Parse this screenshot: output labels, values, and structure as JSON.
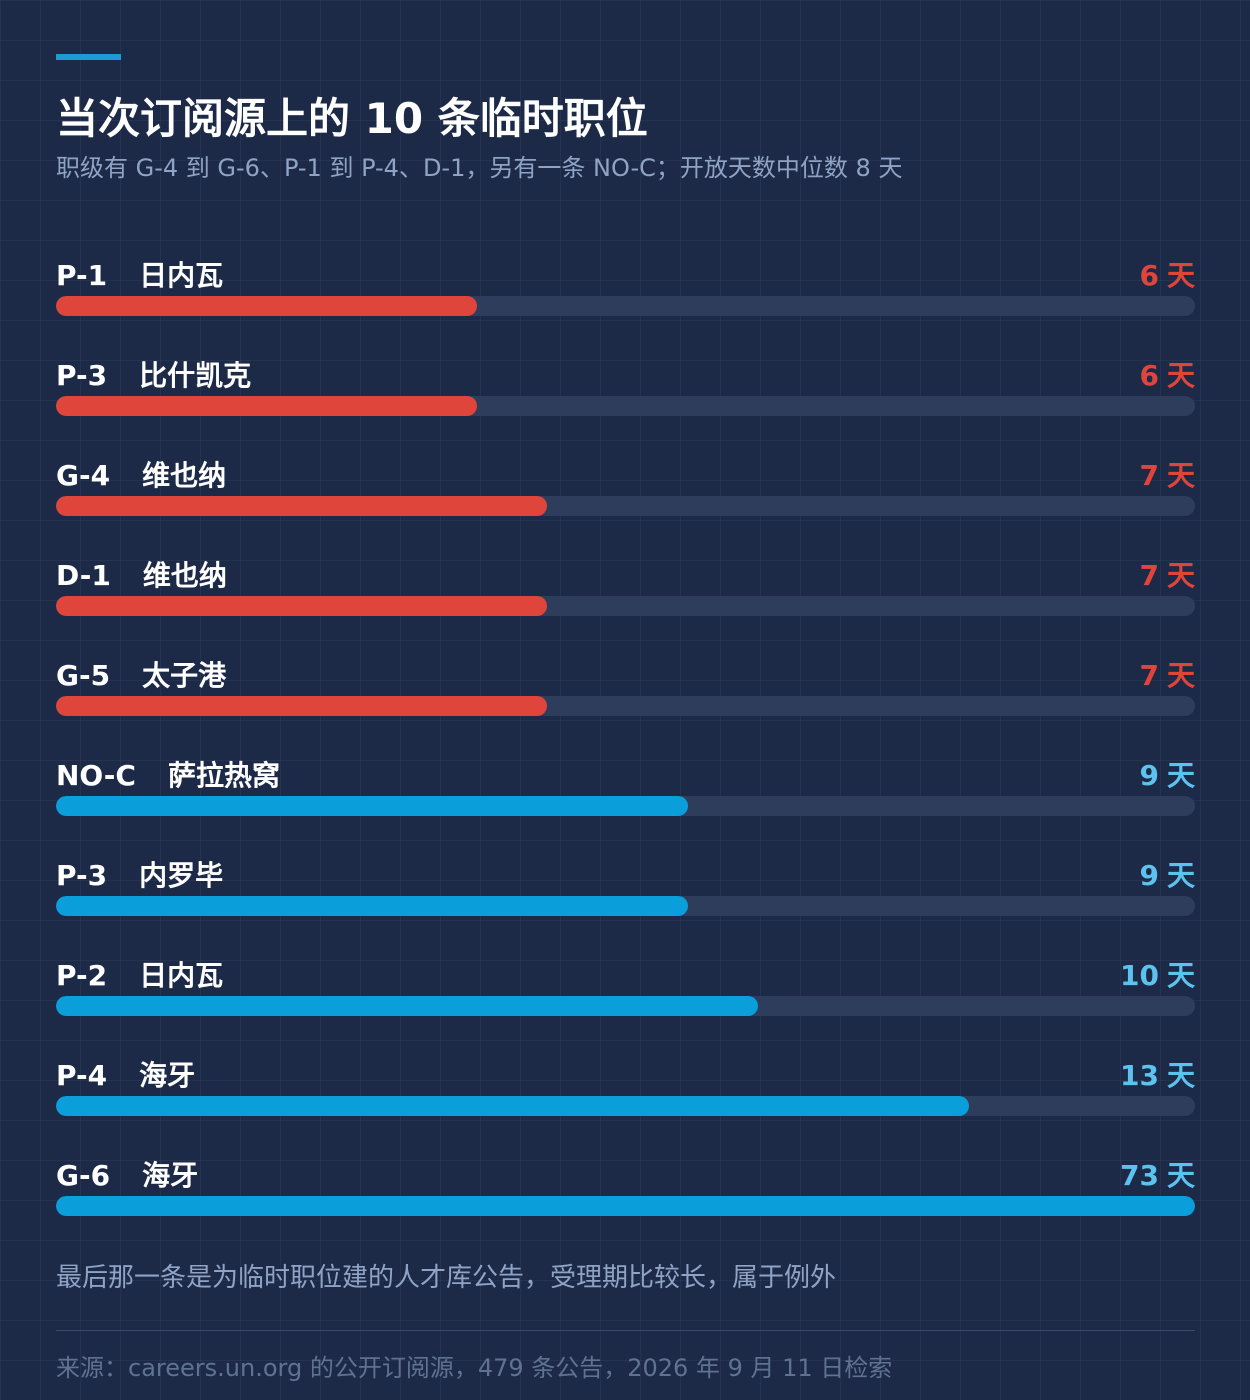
{
  "title": "当次订阅源上的 10 条临时职位",
  "subtitle": "职级有 G-4 到 G-6、P-1 到 P-4、D-1，另有一条 NO-C；开放天数中位数 8 天",
  "note": "最后那一条是为临时职位建的人才库公告，受理期比较长，属于例外",
  "source": "来源：careers.un.org 的公开订阅源，479 条公告，2026 年 9 月 11 日检索",
  "colors": {
    "background": "#1c2a48",
    "accent": "#1e9ad6",
    "short_bar": "#e0453b",
    "short_text": "#e0453b",
    "long_bar": "#0a9edb",
    "long_text": "#5cc2ee",
    "track": "#2e3d5c",
    "muted_text": "#8fa3c4"
  },
  "chart_data": {
    "type": "bar",
    "orientation": "horizontal",
    "title": "当次订阅源上的 10 条临时职位",
    "subtitle": "职级有 G-4 到 G-6、P-1 到 P-4、D-1，另有一条 NO-C；开放天数中位数 8 天",
    "unit": "天",
    "xlim": [
      0,
      73
    ],
    "grid": true,
    "rows": [
      {
        "grade": "P-1",
        "location": "日内瓦",
        "value": 6,
        "group": "short"
      },
      {
        "grade": "P-3",
        "location": "比什凯克",
        "value": 6,
        "group": "short"
      },
      {
        "grade": "G-4",
        "location": "维也纳",
        "value": 7,
        "group": "short"
      },
      {
        "grade": "D-1",
        "location": "维也纳",
        "value": 7,
        "group": "short"
      },
      {
        "grade": "G-5",
        "location": "太子港",
        "value": 7,
        "group": "short"
      },
      {
        "grade": "NO-C",
        "location": "萨拉热窝",
        "value": 9,
        "group": "long"
      },
      {
        "grade": "P-3",
        "location": "内罗毕",
        "value": 9,
        "group": "long"
      },
      {
        "grade": "P-2",
        "location": "日内瓦",
        "value": 10,
        "group": "long"
      },
      {
        "grade": "P-4",
        "location": "海牙",
        "value": 13,
        "group": "long"
      },
      {
        "grade": "G-6",
        "location": "海牙",
        "value": 73,
        "group": "long"
      }
    ]
  }
}
